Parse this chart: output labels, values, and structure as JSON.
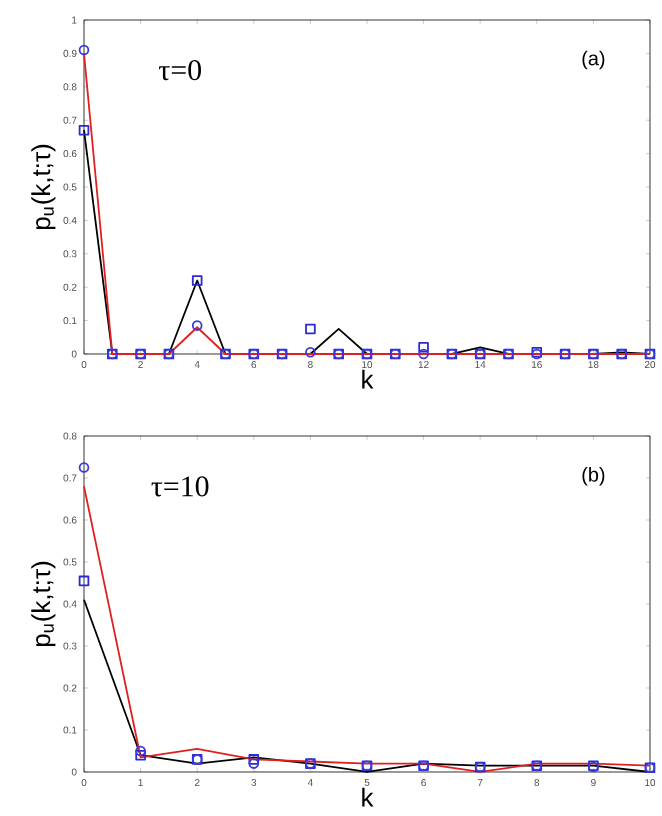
{
  "chart_data": [
    {
      "type": "line",
      "xlabel": "k",
      "ylabel": "p$_{u}$(k,t;τ)",
      "annotations": [
        "τ=0",
        "(a)"
      ],
      "x": [
        0,
        1,
        2,
        3,
        4,
        5,
        6,
        7,
        8,
        9,
        10,
        11,
        12,
        13,
        14,
        15,
        16,
        17,
        18,
        19,
        20
      ],
      "xlim": [
        0,
        20
      ],
      "ylim": [
        0,
        1
      ],
      "xticks": [
        0,
        2,
        4,
        6,
        8,
        10,
        12,
        14,
        16,
        18,
        20
      ],
      "yticks": [
        0,
        0.1,
        0.2,
        0.3,
        0.4,
        0.5,
        0.6,
        0.7,
        0.8,
        0.9,
        1
      ],
      "series": [
        {
          "marker": "none",
          "color": "#000000",
          "values": [
            0.67,
            0,
            0,
            0,
            0.22,
            0,
            0,
            0,
            0,
            0.075,
            0,
            0,
            0,
            0,
            0.02,
            0,
            0,
            0,
            0,
            0.005,
            0
          ]
        },
        {
          "marker": "none",
          "color": "#e02020",
          "values": [
            0.9,
            0,
            0,
            0,
            0.08,
            0,
            0,
            0,
            0,
            0,
            0,
            0,
            0,
            0,
            0,
            0,
            0,
            0,
            0,
            0,
            0
          ]
        },
        {
          "type": "scatter",
          "marker": "square",
          "color": "#2a2ad0",
          "values": [
            0.67,
            0,
            0,
            0,
            0.22,
            0,
            0,
            0,
            0.075,
            0,
            0,
            0,
            0.02,
            0,
            0,
            0,
            0.005,
            0,
            0,
            0,
            0
          ]
        },
        {
          "type": "scatter",
          "marker": "circle",
          "color": "#3a3ae0",
          "values": [
            0.91,
            0,
            0,
            0,
            0.085,
            0,
            0,
            0,
            0.005,
            0,
            0,
            0,
            0,
            0,
            0,
            0,
            0,
            0,
            0,
            0,
            0
          ]
        }
      ]
    },
    {
      "type": "line",
      "xlabel": "k",
      "ylabel": "p$_{u}$(k,t;τ)",
      "annotations": [
        "τ=10",
        "(b)"
      ],
      "x": [
        0,
        1,
        2,
        3,
        4,
        5,
        6,
        7,
        8,
        9,
        10
      ],
      "xlim": [
        0,
        10
      ],
      "ylim": [
        0,
        0.8
      ],
      "xticks": [
        0,
        1,
        2,
        3,
        4,
        5,
        6,
        7,
        8,
        9,
        10
      ],
      "yticks": [
        0,
        0.1,
        0.2,
        0.3,
        0.4,
        0.5,
        0.6,
        0.7,
        0.8
      ],
      "series": [
        {
          "marker": "none",
          "color": "#000000",
          "values": [
            0.41,
            0.04,
            0.02,
            0.035,
            0.02,
            0,
            0.02,
            0.015,
            0.015,
            0.015,
            0
          ]
        },
        {
          "marker": "none",
          "color": "#e02020",
          "values": [
            0.68,
            0.035,
            0.055,
            0.03,
            0.025,
            0.02,
            0.02,
            0,
            0.02,
            0.02,
            0.015
          ]
        },
        {
          "type": "scatter",
          "marker": "square",
          "color": "#2a2ad0",
          "values": [
            0.455,
            0.04,
            0.03,
            0.03,
            0.02,
            0.015,
            0.015,
            0.012,
            0.015,
            0.015,
            0.01
          ]
        },
        {
          "type": "scatter",
          "marker": "circle",
          "color": "#3a3ae0",
          "values": [
            0.725,
            0.05,
            0.03,
            0.02,
            0.02,
            0.015,
            0.015,
            0.012,
            0.015,
            0.012,
            0.01
          ]
        }
      ]
    }
  ]
}
